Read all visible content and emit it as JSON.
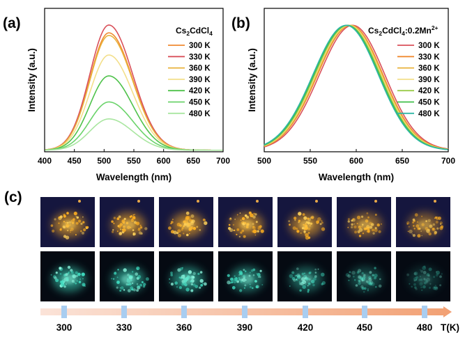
{
  "panels": {
    "a": "(a)",
    "b": "(b)",
    "c": "(c)"
  },
  "chart_data": [
    {
      "id": "a",
      "type": "line",
      "title": "Cs2CdCl4",
      "title_parts": {
        "base": "Cs",
        "s1": "2",
        "mid": "CdCl",
        "s2": "4",
        "tail": ""
      },
      "xlabel": "Wavelength (nm)",
      "ylabel": "Intensity (a.u.)",
      "xlim": [
        400,
        700
      ],
      "ylim": [
        0,
        1.1
      ],
      "xticks": [
        400,
        450,
        500,
        550,
        600,
        650,
        700
      ],
      "legend_position": "top-right",
      "peak": 508,
      "series": [
        {
          "name": "300 K",
          "color": "#f08a30",
          "amplitude": 0.9
        },
        {
          "name": "330 K",
          "color": "#d9505a",
          "amplitude": 0.96
        },
        {
          "name": "360 K",
          "color": "#e8b23a",
          "amplitude": 0.88
        },
        {
          "name": "390 K",
          "color": "#f3df8a",
          "amplitude": 0.73
        },
        {
          "name": "420 K",
          "color": "#4ec24a",
          "amplitude": 0.57
        },
        {
          "name": "450 K",
          "color": "#6ad36a",
          "amplitude": 0.37
        },
        {
          "name": "480 K",
          "color": "#a9e6a0",
          "amplitude": 0.24
        }
      ]
    },
    {
      "id": "b",
      "type": "line",
      "title": "Cs2CdCl4:0.2Mn2+",
      "title_parts": {
        "base": "Cs",
        "s1": "2",
        "mid": "CdCl",
        "s2": "4",
        "tail": ":0.2Mn",
        "sup": "2+"
      },
      "xlabel": "Wavelength (nm)",
      "ylabel": "Intensity (a.u.)",
      "xlim": [
        500,
        700
      ],
      "ylim": [
        0,
        1.1
      ],
      "xticks": [
        500,
        550,
        600,
        650,
        700
      ],
      "legend_position": "top-right",
      "series": [
        {
          "name": "300 K",
          "color": "#d9505a",
          "peak": 596
        },
        {
          "name": "330 K",
          "color": "#f08a30",
          "peak": 594
        },
        {
          "name": "360 K",
          "color": "#e8b23a",
          "peak": 593
        },
        {
          "name": "390 K",
          "color": "#f3df8a",
          "peak": 592
        },
        {
          "name": "420 K",
          "color": "#9acb4a",
          "peak": 591
        },
        {
          "name": "450 K",
          "color": "#3fbf4a",
          "peak": 590
        },
        {
          "name": "480 K",
          "color": "#2fb7a6",
          "peak": 589
        }
      ]
    }
  ],
  "photos": {
    "temperatures": [
      "300",
      "330",
      "360",
      "390",
      "420",
      "450",
      "480"
    ],
    "unit_label": "T(K)",
    "rows": [
      {
        "name": "mn-doped-emission",
        "background": "#15163e",
        "glow": "#ffb020",
        "core": "#ffd25a"
      },
      {
        "name": "undoped-emission",
        "background": "#050a12",
        "glow": "#3fdcc0",
        "core": "#8af5dd"
      }
    ],
    "glow_level": [
      [
        1.0,
        1.0,
        1.0,
        1.0,
        0.95,
        0.85,
        0.75
      ],
      [
        1.0,
        0.95,
        0.9,
        0.85,
        0.7,
        0.5,
        0.3
      ]
    ]
  }
}
